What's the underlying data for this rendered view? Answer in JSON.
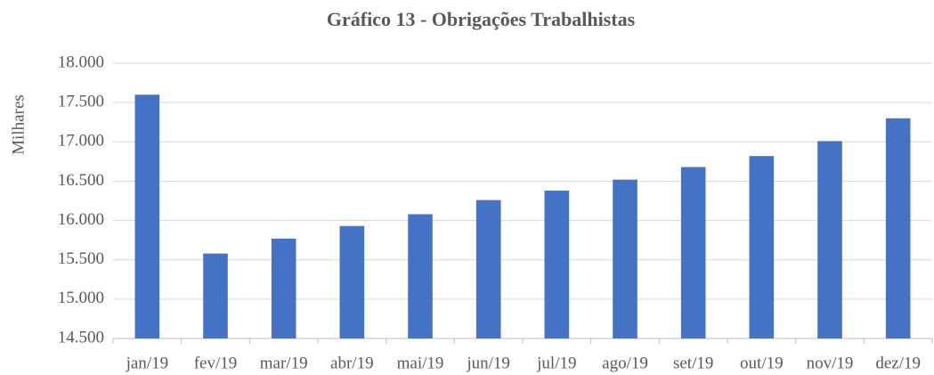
{
  "chart_data": {
    "type": "bar",
    "title": "Gráfico 13 - Obrigações Trabalhistas",
    "y_label": "Milhares",
    "categories": [
      "jan/19",
      "fev/19",
      "mar/19",
      "abr/19",
      "mai/19",
      "jun/19",
      "jul/19",
      "ago/19",
      "set/19",
      "out/19",
      "nov/19",
      "dez/19"
    ],
    "values": [
      17600,
      15580,
      15770,
      15930,
      16080,
      16260,
      16380,
      16520,
      16680,
      16820,
      17010,
      17300
    ],
    "color": "#4472c4",
    "ylim": [
      14500,
      18000
    ],
    "yticks": [
      {
        "value": 14500,
        "label": "14.500"
      },
      {
        "value": 15000,
        "label": "15.000"
      },
      {
        "value": 15500,
        "label": "15.500"
      },
      {
        "value": 16000,
        "label": "16.000"
      },
      {
        "value": 16500,
        "label": "16.500"
      },
      {
        "value": 17000,
        "label": "17.000"
      },
      {
        "value": 17500,
        "label": "17.500"
      },
      {
        "value": 18000,
        "label": "18.000"
      }
    ],
    "grid": true
  }
}
